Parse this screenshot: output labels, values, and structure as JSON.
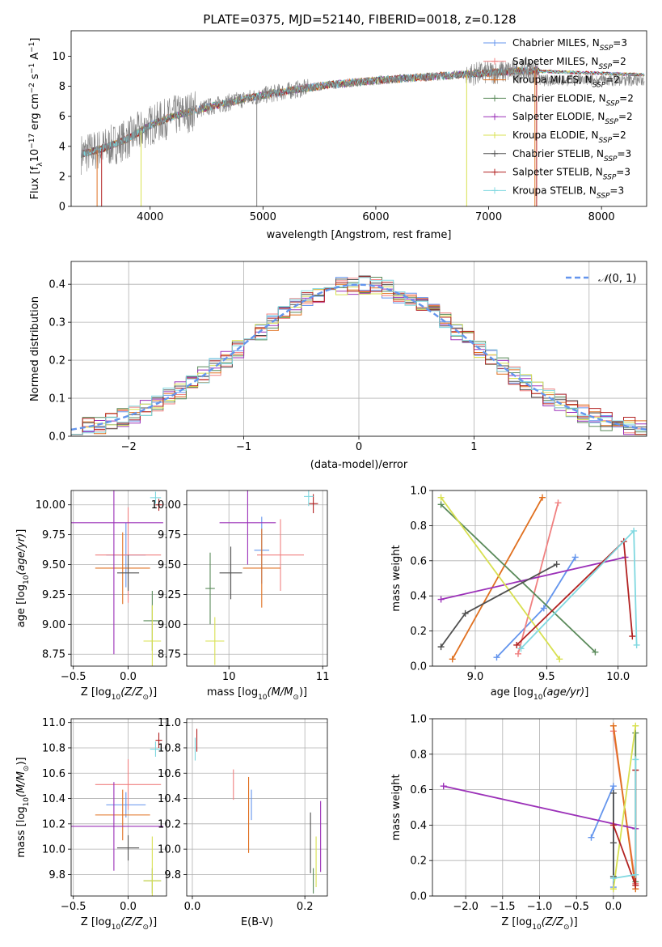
{
  "figure": {
    "title": "PLATE=0375, MJD=52140, FIBERID=0018, z=0.128"
  },
  "palette": {
    "Chabrier MILES": "#6495ED",
    "Salpeter MILES": "#F08080",
    "Kroupa MILES": "#E07020",
    "Chabrier ELODIE": "#5A8A5A",
    "Salpeter ELODIE": "#9B30B8",
    "Kroupa ELODIE": "#D8E050",
    "Chabrier STELIB": "#505050",
    "Salpeter STELIB": "#B22222",
    "Kroupa STELIB": "#80D8E0",
    "Kroupa ELODIE (bottom panel)": "#AEE040",
    "Salpeter MILES (age panel)": "#E888B0",
    "data": "#808080",
    "normal": "#6495ED"
  },
  "chart_data": [
    {
      "id": "spectrum",
      "type": "line",
      "title": "PLATE=0375, MJD=52140, FIBERID=0018, z=0.128",
      "xlabel": "wavelength [Angstrom, rest frame]",
      "ylabel": "Flux [f_λ10^-17 erg cm^-2 s^-1 A^-1]",
      "xlim": [
        3300,
        8400
      ],
      "ylim": [
        0,
        11.7
      ],
      "xticks": [
        4000,
        5000,
        6000,
        7000,
        8000
      ],
      "yticks": [
        0,
        2,
        4,
        6,
        8,
        10
      ],
      "legend_position": "top-right",
      "legend": [
        {
          "label": "Chabrier MILES, N",
          "sub": "SSP",
          "suffix": "=3"
        },
        {
          "label": "Salpeter MILES, N",
          "sub": "SSP",
          "suffix": "=2"
        },
        {
          "label": "Kroupa MILES, N",
          "sub": "SSP",
          "suffix": "=2"
        },
        {
          "label": "Chabrier ELODIE, N",
          "sub": "SSP",
          "suffix": "=2"
        },
        {
          "label": "Salpeter ELODIE, N",
          "sub": "SSP",
          "suffix": "=2"
        },
        {
          "label": "Kroupa ELODIE, N",
          "sub": "SSP",
          "suffix": "=2"
        },
        {
          "label": "Chabrier STELIB, N",
          "sub": "SSP",
          "suffix": "=3"
        },
        {
          "label": "Salpeter STELIB, N",
          "sub": "SSP",
          "suffix": "=3"
        },
        {
          "label": "Kroupa STELIB, N",
          "sub": "SSP",
          "suffix": "=3"
        }
      ],
      "continuum": {
        "x": [
          3400,
          3600,
          3800,
          4000,
          4200,
          4500,
          4800,
          5000,
          5300,
          5600,
          6000,
          6400,
          6800,
          7200,
          7500
        ],
        "y": [
          3.5,
          3.9,
          4.5,
          5.4,
          6.0,
          6.6,
          7.1,
          7.4,
          7.8,
          8.1,
          8.4,
          8.6,
          8.8,
          9.0,
          9.1
        ]
      },
      "data_extent": [
        3390,
        8380
      ]
    },
    {
      "id": "residuals",
      "type": "bar",
      "xlabel": "(data-model)/error",
      "ylabel": "Normed distribution",
      "xlim": [
        -2.5,
        2.5
      ],
      "ylim": [
        0,
        0.46
      ],
      "xticks": [
        -2,
        -1,
        0,
        1,
        2
      ],
      "yticks": [
        0.0,
        0.1,
        0.2,
        0.3,
        0.4
      ],
      "bin_width": 0.1,
      "legend_position": "top-right",
      "legend": [
        "𝒩(0, 1)"
      ],
      "reference": "N(0,1)"
    },
    {
      "id": "z_vs_age",
      "type": "scatter",
      "xlabel": "Z [log10(Z/Z⊙)]",
      "ylabel": "age  [log10(age/yr)]",
      "xlim": [
        -0.52,
        0.35
      ],
      "ylim": [
        8.65,
        10.12
      ],
      "xticks": [
        -0.5,
        0.0
      ],
      "yticks": [
        8.75,
        9.0,
        9.25,
        9.5,
        9.75,
        10.0
      ],
      "points": [
        {
          "model": "Chabrier MILES",
          "x": -0.02,
          "xerr": 0.18,
          "y": 9.58,
          "yerr": 0.27
        },
        {
          "model": "Salpeter MILES",
          "x": 0.0,
          "xerr": 0.3,
          "y": 9.58,
          "yerr": 0.4
        },
        {
          "model": "Kroupa MILES",
          "x": -0.05,
          "xerr": 0.25,
          "y": 9.47,
          "yerr": 0.3
        },
        {
          "model": "Chabrier ELODIE",
          "x": 0.22,
          "xerr": 0.08,
          "y": 9.03,
          "yerr": 0.25
        },
        {
          "model": "Salpeter ELODIE",
          "x": -0.13,
          "xerr": 0.45,
          "y": 9.85,
          "yerr": 1.1
        },
        {
          "model": "Kroupa ELODIE",
          "x": 0.22,
          "xerr": 0.08,
          "y": 8.86,
          "yerr": 0.3
        },
        {
          "model": "Chabrier STELIB",
          "x": 0.0,
          "xerr": 0.1,
          "y": 9.43,
          "yerr": 0.15
        },
        {
          "model": "Salpeter STELIB",
          "x": 0.28,
          "xerr": 0.03,
          "y": 10.0,
          "yerr": 0.05
        },
        {
          "model": "Kroupa STELIB",
          "x": 0.25,
          "xerr": 0.05,
          "y": 10.06,
          "yerr": 0.05
        }
      ]
    },
    {
      "id": "mass_vs_age",
      "type": "scatter",
      "xlabel": "mass [log10(M/M⊙)]",
      "ylabel": "",
      "xlim": [
        9.55,
        11.05
      ],
      "ylim": [
        8.65,
        10.12
      ],
      "xticks": [
        10,
        11
      ],
      "yticks": [
        8.75,
        9.0,
        9.25,
        9.5,
        9.75,
        10.0
      ],
      "points": [
        {
          "model": "Chabrier MILES",
          "x": 10.35,
          "xerr": 0.08,
          "y": 9.62,
          "yerr": 0.28
        },
        {
          "model": "Salpeter MILES",
          "x": 10.55,
          "xerr": 0.25,
          "y": 9.58,
          "yerr": 0.3
        },
        {
          "model": "Kroupa MILES",
          "x": 10.35,
          "xerr": 0.2,
          "y": 9.47,
          "yerr": 0.33
        },
        {
          "model": "Chabrier ELODIE",
          "x": 9.8,
          "xerr": 0.05,
          "y": 9.3,
          "yerr": 0.3
        },
        {
          "model": "Salpeter ELODIE",
          "x": 10.2,
          "xerr": 0.3,
          "y": 9.85,
          "yerr": 0.35
        },
        {
          "model": "Kroupa ELODIE",
          "x": 9.85,
          "xerr": 0.1,
          "y": 8.86,
          "yerr": 0.2
        },
        {
          "model": "Chabrier STELIB",
          "x": 10.02,
          "xerr": 0.12,
          "y": 9.43,
          "yerr": 0.22
        },
        {
          "model": "Salpeter STELIB",
          "x": 10.9,
          "xerr": 0.05,
          "y": 10.01,
          "yerr": 0.08
        },
        {
          "model": "Kroupa STELIB",
          "x": 10.85,
          "xerr": 0.05,
          "y": 10.07,
          "yerr": 0.08
        }
      ]
    },
    {
      "id": "weights_age",
      "type": "line",
      "xlabel": "age  [log10(age/yr)]",
      "ylabel": "mass weight",
      "xlim": [
        8.7,
        10.2
      ],
      "ylim": [
        0,
        1.0
      ],
      "xticks": [
        9.0,
        9.5,
        10.0
      ],
      "yticks": [
        0.0,
        0.2,
        0.4,
        0.6,
        0.8,
        1.0
      ],
      "series": [
        {
          "model": "Chabrier MILES",
          "x": [
            9.15,
            9.48,
            9.7
          ],
          "y": [
            0.05,
            0.33,
            0.62
          ]
        },
        {
          "model": "Salpeter MILES",
          "x": [
            9.3,
            9.58
          ],
          "y": [
            0.07,
            0.93
          ]
        },
        {
          "model": "Kroupa MILES",
          "x": [
            8.84,
            9.47
          ],
          "y": [
            0.04,
            0.96
          ]
        },
        {
          "model": "Chabrier ELODIE",
          "x": [
            8.76,
            9.84
          ],
          "y": [
            0.92,
            0.08
          ]
        },
        {
          "model": "Salpeter ELODIE",
          "x": [
            8.76,
            10.05
          ],
          "y": [
            0.38,
            0.62
          ]
        },
        {
          "model": "Kroupa ELODIE",
          "x": [
            8.76,
            9.59
          ],
          "y": [
            0.96,
            0.04
          ]
        },
        {
          "model": "Chabrier STELIB",
          "x": [
            8.76,
            8.93,
            9.57
          ],
          "y": [
            0.11,
            0.3,
            0.58
          ]
        },
        {
          "model": "Salpeter STELIB",
          "x": [
            9.29,
            10.04,
            10.1
          ],
          "y": [
            0.12,
            0.71,
            0.17
          ]
        },
        {
          "model": "Kroupa STELIB",
          "x": [
            9.32,
            10.11,
            10.13
          ],
          "y": [
            0.1,
            0.77,
            0.12
          ]
        }
      ]
    },
    {
      "id": "z_vs_mass",
      "type": "scatter",
      "xlabel": "Z [log10(Z/Z⊙)]",
      "ylabel": "mass [log10(M/M⊙)]",
      "xlim": [
        -0.52,
        0.35
      ],
      "ylim": [
        9.63,
        11.03
      ],
      "xticks": [
        -0.5,
        0.0
      ],
      "yticks": [
        9.8,
        10.0,
        10.2,
        10.4,
        10.6,
        10.8,
        11.0
      ],
      "points": [
        {
          "model": "Chabrier MILES",
          "x": -0.02,
          "xerr": 0.18,
          "y": 10.35,
          "yerr": 0.1
        },
        {
          "model": "Salpeter MILES",
          "x": 0.0,
          "xerr": 0.3,
          "y": 10.51,
          "yerr": 0.2
        },
        {
          "model": "Kroupa MILES",
          "x": -0.05,
          "xerr": 0.25,
          "y": 10.27,
          "yerr": 0.2
        },
        {
          "model": "Chabrier ELODIE",
          "x": 0.22,
          "xerr": 0.08,
          "y": 9.75,
          "yerr": 0.1
        },
        {
          "model": "Salpeter ELODIE",
          "x": -0.13,
          "xerr": 0.45,
          "y": 10.18,
          "yerr": 0.35
        },
        {
          "model": "Kroupa ELODIE",
          "x": 0.22,
          "xerr": 0.08,
          "y": 9.75,
          "yerr": 0.35
        },
        {
          "model": "Chabrier STELIB",
          "x": 0.0,
          "xerr": 0.1,
          "y": 10.01,
          "yerr": 0.1
        },
        {
          "model": "Salpeter STELIB",
          "x": 0.28,
          "xerr": 0.03,
          "y": 10.86,
          "yerr": 0.06
        },
        {
          "model": "Kroupa STELIB",
          "x": 0.25,
          "xerr": 0.05,
          "y": 10.79,
          "yerr": 0.06
        }
      ]
    },
    {
      "id": "ebv_vs_mass",
      "type": "scatter",
      "xlabel": "E(B-V)",
      "ylabel": "",
      "xlim": [
        -0.01,
        0.24
      ],
      "ylim": [
        9.63,
        11.03
      ],
      "xticks": [
        0.0,
        0.2
      ],
      "yticks": [
        9.8,
        10.0,
        10.2,
        10.4,
        10.6,
        10.8,
        11.0
      ],
      "points": [
        {
          "model": "Chabrier MILES",
          "x": 0.105,
          "y": 10.35,
          "yerr": 0.12
        },
        {
          "model": "Salpeter MILES",
          "x": 0.073,
          "y": 10.51,
          "yerr": 0.12
        },
        {
          "model": "Kroupa MILES",
          "x": 0.1,
          "y": 10.27,
          "yerr": 0.3
        },
        {
          "model": "Chabrier ELODIE",
          "x": 0.215,
          "y": 9.75,
          "yerr": 0.1
        },
        {
          "model": "Salpeter ELODIE",
          "x": 0.228,
          "y": 10.1,
          "yerr": 0.28
        },
        {
          "model": "Kroupa ELODIE",
          "x": 0.22,
          "y": 9.9,
          "yerr": 0.2
        },
        {
          "model": "Chabrier STELIB",
          "x": 0.21,
          "y": 10.05,
          "yerr": 0.24
        },
        {
          "model": "Salpeter STELIB",
          "x": 0.008,
          "y": 10.86,
          "yerr": 0.09
        },
        {
          "model": "Kroupa STELIB",
          "x": 0.005,
          "y": 10.79,
          "yerr": 0.09
        }
      ]
    },
    {
      "id": "weights_z",
      "type": "line",
      "xlabel": "Z [log10(Z/Z⊙)]",
      "ylabel": "mass weight",
      "xlim": [
        -2.45,
        0.45
      ],
      "ylim": [
        0,
        1.0
      ],
      "xticks": [
        -2.0,
        -1.5,
        -1.0,
        -0.5,
        0.0
      ],
      "yticks": [
        0.0,
        0.2,
        0.4,
        0.6,
        0.8,
        1.0
      ],
      "series": [
        {
          "model": "Chabrier MILES",
          "x": [
            -0.3,
            0.0,
            0.0
          ],
          "y": [
            0.33,
            0.62,
            0.05
          ]
        },
        {
          "model": "Salpeter MILES",
          "x": [
            0.0,
            0.3
          ],
          "y": [
            0.93,
            0.07
          ]
        },
        {
          "model": "Kroupa MILES",
          "x": [
            0.0,
            0.3
          ],
          "y": [
            0.96,
            0.04
          ]
        },
        {
          "model": "Chabrier ELODIE",
          "x": [
            0.3,
            0.3
          ],
          "y": [
            0.92,
            0.08
          ]
        },
        {
          "model": "Salpeter ELODIE",
          "x": [
            -2.3,
            0.3
          ],
          "y": [
            0.62,
            0.38
          ]
        },
        {
          "model": "Kroupa ELODIE",
          "x": [
            0.3,
            0.0
          ],
          "y": [
            0.96,
            0.04
          ]
        },
        {
          "model": "Chabrier STELIB",
          "x": [
            0.0,
            0.0,
            0.0
          ],
          "y": [
            0.58,
            0.3,
            0.11
          ]
        },
        {
          "model": "Salpeter STELIB",
          "x": [
            0.3,
            0.3,
            0.0
          ],
          "y": [
            0.71,
            0.06,
            0.4
          ]
        },
        {
          "model": "Kroupa STELIB",
          "x": [
            0.3,
            0.3,
            0.0
          ],
          "y": [
            0.77,
            0.12,
            0.1
          ]
        }
      ]
    }
  ]
}
